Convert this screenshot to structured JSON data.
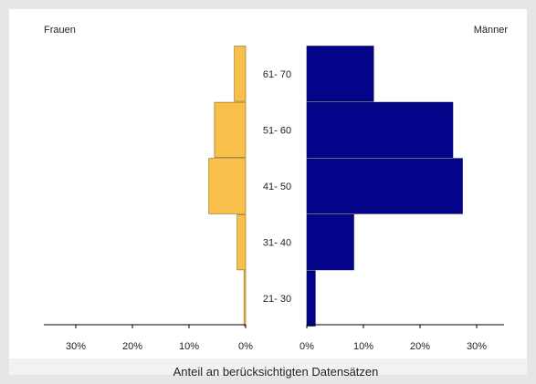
{
  "chart_data": {
    "type": "bar",
    "orientation": "horizontal",
    "layout": "population-pyramid",
    "categories": [
      "21- 30",
      "31- 40",
      "41- 50",
      "51- 60",
      "61- 70"
    ],
    "series": [
      {
        "name": "Frauen",
        "values": [
          0.3,
          1.5,
          6.5,
          5.5,
          2.0
        ],
        "color": "#f8bf4a"
      },
      {
        "name": "Männer",
        "values": [
          1.5,
          8.3,
          27.5,
          25.8,
          11.8
        ],
        "color": "#04048a"
      }
    ],
    "xlabel": "Anteil an berücksichtigten Datensätzen",
    "xticks_left": [
      "30%",
      "20%",
      "10%",
      "0%"
    ],
    "xticks_right": [
      "0%",
      "10%",
      "20%",
      "30%"
    ],
    "xlim": [
      0,
      35
    ],
    "grid": false,
    "legend": "top"
  }
}
